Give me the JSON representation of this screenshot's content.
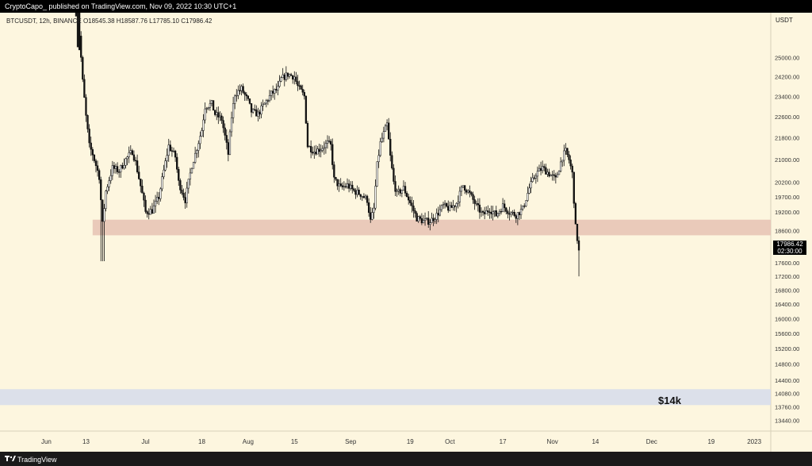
{
  "header": {
    "published_text": "CryptoCapo_ published on TradingView.com, Nov 09, 2022 10:30 UTC+1"
  },
  "legend": {
    "symbol_info": "BTCUSDT, 12h, BINANCE",
    "open": "O18545.38",
    "high": "H18587.76",
    "low": "L17785.10",
    "close": "C17986.42"
  },
  "price_scale": {
    "unit": "USDT",
    "last_price": "17986.42",
    "countdown": "02:30:00"
  },
  "footer": {
    "brand": "TradingView",
    "logo_icon": "tradingview-logo-icon"
  },
  "annotation": {
    "label": "$14k"
  },
  "colors": {
    "background": "#fdf6df",
    "support_zone": "#e6c2b4",
    "target_zone": "#d6dcec",
    "candle": "#111111"
  },
  "chart_data": {
    "type": "candlestick",
    "symbol": "BTCUSDT",
    "interval": "12h",
    "exchange": "BINANCE",
    "y_axis": {
      "scale": "log",
      "ticks": [
        25000,
        24200,
        23400,
        22600,
        21800,
        21000,
        20200,
        19700,
        19200,
        18600,
        17600,
        17200,
        16800,
        16400,
        16000,
        15600,
        15200,
        14800,
        14400,
        14080,
        13760,
        13440
      ],
      "ylim": [
        13200,
        27000
      ]
    },
    "x_axis": {
      "ticks": [
        {
          "label": "Jun",
          "date": "2022-06-01"
        },
        {
          "label": "13",
          "date": "2022-06-13"
        },
        {
          "label": "Jul",
          "date": "2022-07-01"
        },
        {
          "label": "18",
          "date": "2022-07-18"
        },
        {
          "label": "Aug",
          "date": "2022-08-01"
        },
        {
          "label": "15",
          "date": "2022-08-15"
        },
        {
          "label": "Sep",
          "date": "2022-09-01"
        },
        {
          "label": "19",
          "date": "2022-09-19"
        },
        {
          "label": "Oct",
          "date": "2022-10-01"
        },
        {
          "label": "17",
          "date": "2022-10-17"
        },
        {
          "label": "Nov",
          "date": "2022-11-01"
        },
        {
          "label": "14",
          "date": "2022-11-14"
        },
        {
          "label": "Dec",
          "date": "2022-12-01"
        },
        {
          "label": "19",
          "date": "2022-12-19"
        },
        {
          "label": "2023",
          "date": "2023-01-01"
        }
      ],
      "xlim": [
        "2022-05-18",
        "2023-01-06"
      ]
    },
    "zones": [
      {
        "y_low": 18450,
        "y_high": 18950,
        "x_start": "2022-06-15",
        "x_end": "2023-01-06",
        "color": "#e6c2b4"
      },
      {
        "y_low": 13800,
        "y_high": 14180,
        "x_start": "2022-05-18",
        "x_end": "2023-01-06",
        "color": "#d6dcec",
        "label": "$14k"
      }
    ],
    "last_price": 17986.42,
    "anchors": [
      [
        "2022-06-10",
        29500
      ],
      [
        "2022-06-11",
        26000
      ],
      [
        "2022-06-12",
        24000
      ],
      [
        "2022-06-13",
        22600
      ],
      [
        "2022-06-14",
        21500
      ],
      [
        "2022-06-15",
        21200
      ],
      [
        "2022-06-17",
        20400
      ],
      [
        "2022-06-18",
        18800
      ],
      [
        "2022-06-19",
        19900
      ],
      [
        "2022-06-21",
        20700
      ],
      [
        "2022-06-23",
        20600
      ],
      [
        "2022-06-25",
        21000
      ],
      [
        "2022-06-27",
        21300
      ],
      [
        "2022-06-28",
        20900
      ],
      [
        "2022-06-30",
        19800
      ],
      [
        "2022-07-01",
        19200
      ],
      [
        "2022-07-03",
        19250
      ],
      [
        "2022-07-05",
        19700
      ],
      [
        "2022-07-06",
        20300
      ],
      [
        "2022-07-08",
        21500
      ],
      [
        "2022-07-10",
        21100
      ],
      [
        "2022-07-11",
        20200
      ],
      [
        "2022-07-13",
        19600
      ],
      [
        "2022-07-15",
        20800
      ],
      [
        "2022-07-16",
        21200
      ],
      [
        "2022-07-18",
        22100
      ],
      [
        "2022-07-19",
        23000
      ],
      [
        "2022-07-21",
        23100
      ],
      [
        "2022-07-22",
        22700
      ],
      [
        "2022-07-24",
        22500
      ],
      [
        "2022-07-26",
        21200
      ],
      [
        "2022-07-27",
        22600
      ],
      [
        "2022-07-28",
        23500
      ],
      [
        "2022-07-30",
        23700
      ],
      [
        "2022-08-01",
        23200
      ],
      [
        "2022-08-02",
        22800
      ],
      [
        "2022-08-04",
        22700
      ],
      [
        "2022-08-06",
        23100
      ],
      [
        "2022-08-08",
        23500
      ],
      [
        "2022-08-10",
        23700
      ],
      [
        "2022-08-11",
        24100
      ],
      [
        "2022-08-13",
        24300
      ],
      [
        "2022-08-15",
        24200
      ],
      [
        "2022-08-16",
        23800
      ],
      [
        "2022-08-18",
        23400
      ],
      [
        "2022-08-19",
        21500
      ],
      [
        "2022-08-21",
        21300
      ],
      [
        "2022-08-23",
        21400
      ],
      [
        "2022-08-25",
        21600
      ],
      [
        "2022-08-26",
        21500
      ],
      [
        "2022-08-27",
        20300
      ],
      [
        "2022-08-29",
        20000
      ],
      [
        "2022-08-31",
        20100
      ],
      [
        "2022-09-02",
        19900
      ],
      [
        "2022-09-04",
        19800
      ],
      [
        "2022-09-06",
        19600
      ],
      [
        "2022-09-07",
        18900
      ],
      [
        "2022-09-08",
        19300
      ],
      [
        "2022-09-09",
        20800
      ],
      [
        "2022-09-10",
        21600
      ],
      [
        "2022-09-12",
        22300
      ],
      [
        "2022-09-13",
        21100
      ],
      [
        "2022-09-14",
        20200
      ],
      [
        "2022-09-15",
        19800
      ],
      [
        "2022-09-17",
        20000
      ],
      [
        "2022-09-19",
        19500
      ],
      [
        "2022-09-21",
        19000
      ],
      [
        "2022-09-23",
        18900
      ],
      [
        "2022-09-25",
        18900
      ],
      [
        "2022-09-27",
        19100
      ],
      [
        "2022-09-29",
        19400
      ],
      [
        "2022-10-01",
        19300
      ],
      [
        "2022-10-03",
        19500
      ],
      [
        "2022-10-05",
        20100
      ],
      [
        "2022-10-07",
        19800
      ],
      [
        "2022-10-09",
        19400
      ],
      [
        "2022-10-11",
        19100
      ],
      [
        "2022-10-13",
        19300
      ],
      [
        "2022-10-15",
        19100
      ],
      [
        "2022-10-17",
        19400
      ],
      [
        "2022-10-19",
        19200
      ],
      [
        "2022-10-21",
        19100
      ],
      [
        "2022-10-23",
        19300
      ],
      [
        "2022-10-25",
        20000
      ],
      [
        "2022-10-27",
        20500
      ],
      [
        "2022-10-29",
        20700
      ],
      [
        "2022-10-31",
        20500
      ],
      [
        "2022-11-02",
        20300
      ],
      [
        "2022-11-04",
        21100
      ],
      [
        "2022-11-05",
        21300
      ],
      [
        "2022-11-06",
        21000
      ],
      [
        "2022-11-07",
        20500
      ],
      [
        "2022-11-08",
        18700
      ],
      [
        "2022-11-09",
        17986
      ]
    ]
  }
}
